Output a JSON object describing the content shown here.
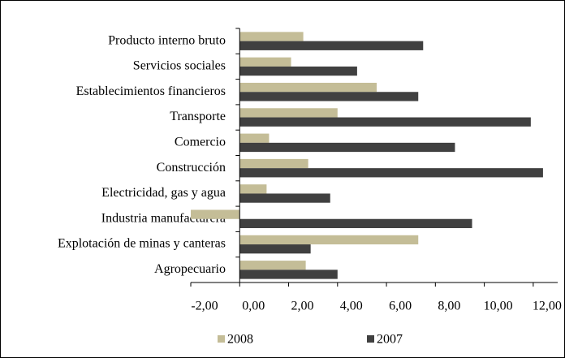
{
  "chart_data": {
    "type": "hbar",
    "categories": [
      "Producto interno bruto",
      "Servicios sociales",
      "Establecimientos financieros",
      "Transporte",
      "Comercio",
      "Construcción",
      "Electricidad, gas y agua",
      "Industria manufacturera",
      "Explotación de minas y canteras",
      "Agropecuario"
    ],
    "series": [
      {
        "name": "2008",
        "color": "#c4bd97",
        "values": [
          2.6,
          2.1,
          5.6,
          4.0,
          1.2,
          2.8,
          1.1,
          -2.0,
          7.3,
          2.7
        ]
      },
      {
        "name": "2007",
        "color": "#404040",
        "values": [
          7.5,
          4.8,
          7.3,
          11.9,
          8.8,
          12.4,
          3.7,
          9.5,
          2.9,
          4.0
        ]
      }
    ],
    "xlim": [
      -2,
      13
    ],
    "xticks": [
      {
        "value": -2,
        "label": "-2,00"
      },
      {
        "value": 0,
        "label": "0,00"
      },
      {
        "value": 2,
        "label": "2,00"
      },
      {
        "value": 4,
        "label": "4,00"
      },
      {
        "value": 6,
        "label": "6,00"
      },
      {
        "value": 8,
        "label": "8,00"
      },
      {
        "value": 10,
        "label": "10,00"
      },
      {
        "value": 12,
        "label": "12,00"
      }
    ],
    "legend": "bottom"
  }
}
